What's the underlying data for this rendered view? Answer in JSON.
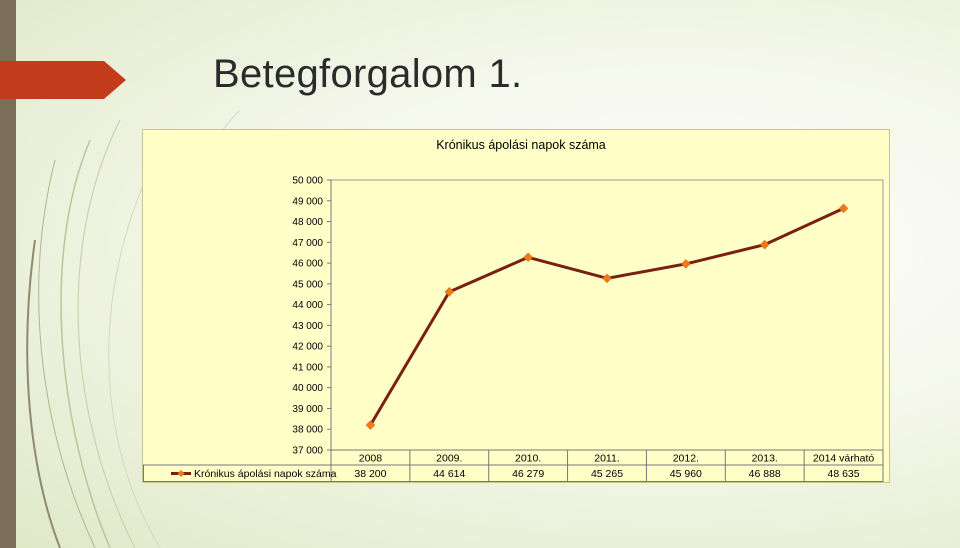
{
  "slide": {
    "title": "Betegforgalom 1."
  },
  "colors": {
    "line": "#7b1f0f",
    "marker": "#f07a1a",
    "plot_background": "#ffffc8",
    "accent_arrow": "#c23b1b",
    "left_bar": "#7a6e58"
  },
  "chart_data": {
    "type": "line",
    "title": "Krónikus ápolási napok száma",
    "categories": [
      "2008",
      "2009.",
      "2010.",
      "2011.",
      "2012.",
      "2013.",
      "2014 várható"
    ],
    "series": [
      {
        "name": "Krónikus ápolási napok száma",
        "values": [
          38200,
          44614,
          46279,
          45265,
          45960,
          46888,
          48635
        ],
        "value_labels": [
          "38 200",
          "44 614",
          "46 279",
          "45 265",
          "45 960",
          "46 888",
          "48 635"
        ]
      }
    ],
    "ylim": [
      37000,
      50000
    ],
    "ytick_values": [
      37000,
      38000,
      39000,
      40000,
      41000,
      42000,
      43000,
      44000,
      45000,
      46000,
      47000,
      48000,
      49000,
      50000
    ],
    "ytick_labels": [
      "37 000",
      "38 000",
      "39 000",
      "40 000",
      "41 000",
      "42 000",
      "43 000",
      "44 000",
      "45 000",
      "46 000",
      "47 000",
      "48 000",
      "49 000",
      "50 000"
    ],
    "grid": false,
    "data_table": true,
    "xlabel": "",
    "ylabel": ""
  }
}
